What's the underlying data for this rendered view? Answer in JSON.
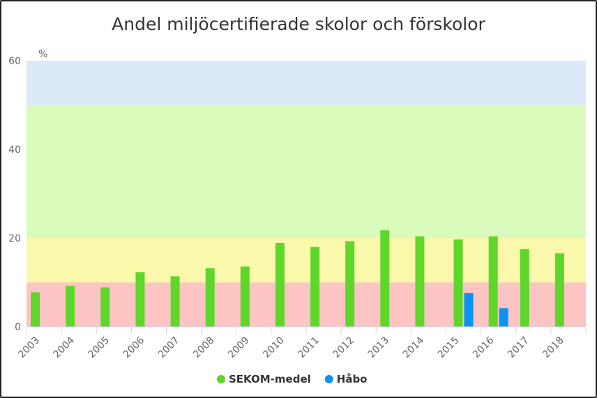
{
  "chart_data": {
    "type": "bar",
    "title": "Andel miljöcertifierade skolor och förskolor",
    "ylabel": "%",
    "xlabel": "",
    "ylim": [
      0,
      60
    ],
    "yticks": [
      0,
      20,
      40,
      60
    ],
    "grid": false,
    "legend_position": "bottom",
    "bands": [
      {
        "from": 0,
        "to": 10,
        "color": "#fdc4c4"
      },
      {
        "from": 10,
        "to": 20,
        "color": "#f9f8ab"
      },
      {
        "from": 20,
        "to": 50,
        "color": "#d9fbbc"
      },
      {
        "from": 50,
        "to": 60,
        "color": "#dbe9f8"
      }
    ],
    "categories": [
      "2003",
      "2004",
      "2005",
      "2006",
      "2007",
      "2008",
      "2009",
      "2010",
      "2011",
      "2012",
      "2013",
      "2014",
      "2015",
      "2016",
      "2017",
      "2018"
    ],
    "series": [
      {
        "name": "SEKOM-medel",
        "color": "#5fd62a",
        "values": [
          7.8,
          9.2,
          8.9,
          12.3,
          11.4,
          13.2,
          13.6,
          18.9,
          18.0,
          19.3,
          21.8,
          20.4,
          19.7,
          20.4,
          17.5,
          16.6
        ]
      },
      {
        "name": "Håbo",
        "color": "#0b93f3",
        "values": [
          null,
          null,
          null,
          null,
          null,
          null,
          null,
          null,
          null,
          null,
          null,
          null,
          7.6,
          4.2,
          null,
          null
        ]
      }
    ]
  }
}
